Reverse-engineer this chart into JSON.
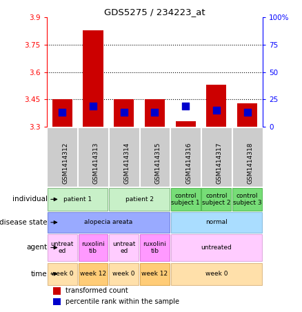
{
  "title": "GDS5275 / 234223_at",
  "samples": [
    "GSM1414312",
    "GSM1414313",
    "GSM1414314",
    "GSM1414315",
    "GSM1414316",
    "GSM1414317",
    "GSM1414318"
  ],
  "red_values": [
    3.45,
    3.83,
    3.45,
    3.45,
    3.33,
    3.53,
    3.43
  ],
  "blue_values_y": [
    3.38,
    3.415,
    3.38,
    3.38,
    3.415,
    3.39,
    3.38
  ],
  "ylim_left": [
    3.3,
    3.9
  ],
  "ylim_right": [
    0,
    100
  ],
  "yticks_left": [
    3.3,
    3.45,
    3.6,
    3.75,
    3.9
  ],
  "yticks_right": [
    0,
    25,
    50,
    75,
    100
  ],
  "ytick_labels_left": [
    "3.3",
    "3.45",
    "3.6",
    "3.75",
    "3.9"
  ],
  "ytick_labels_right": [
    "0",
    "25",
    "50",
    "75",
    "100%"
  ],
  "hlines": [
    3.45,
    3.6,
    3.75
  ],
  "bar_bottom": 3.3,
  "bar_width": 0.65,
  "blue_dot_size": 55,
  "annotation_rows": [
    {
      "label": "individual",
      "cells": [
        {
          "text": "patient 1",
          "span": 2,
          "color": "#c8f0c8",
          "border_color": "#88bb88"
        },
        {
          "text": "patient 2",
          "span": 2,
          "color": "#c8f0c8",
          "border_color": "#88bb88"
        },
        {
          "text": "control\nsubject 1",
          "span": 1,
          "color": "#77dd77",
          "border_color": "#55bb55"
        },
        {
          "text": "control\nsubject 2",
          "span": 1,
          "color": "#77dd77",
          "border_color": "#55bb55"
        },
        {
          "text": "control\nsubject 3",
          "span": 1,
          "color": "#77dd77",
          "border_color": "#55bb55"
        }
      ]
    },
    {
      "label": "disease state",
      "cells": [
        {
          "text": "alopecia areata",
          "span": 4,
          "color": "#99aaff",
          "border_color": "#7788dd"
        },
        {
          "text": "normal",
          "span": 3,
          "color": "#aaddff",
          "border_color": "#88bbdd"
        }
      ]
    },
    {
      "label": "agent",
      "cells": [
        {
          "text": "untreat\ned",
          "span": 1,
          "color": "#ffccff",
          "border_color": "#ddaadd"
        },
        {
          "text": "ruxolini\ntib",
          "span": 1,
          "color": "#ff99ff",
          "border_color": "#dd77dd"
        },
        {
          "text": "untreat\ned",
          "span": 1,
          "color": "#ffccff",
          "border_color": "#ddaadd"
        },
        {
          "text": "ruxolini\ntib",
          "span": 1,
          "color": "#ff99ff",
          "border_color": "#dd77dd"
        },
        {
          "text": "untreated",
          "span": 3,
          "color": "#ffccff",
          "border_color": "#ddaadd"
        }
      ]
    },
    {
      "label": "time",
      "cells": [
        {
          "text": "week 0",
          "span": 1,
          "color": "#ffe0aa",
          "border_color": "#ddbb88"
        },
        {
          "text": "week 12",
          "span": 1,
          "color": "#ffcc77",
          "border_color": "#ddaa55"
        },
        {
          "text": "week 0",
          "span": 1,
          "color": "#ffe0aa",
          "border_color": "#ddbb88"
        },
        {
          "text": "week 12",
          "span": 1,
          "color": "#ffcc77",
          "border_color": "#ddaa55"
        },
        {
          "text": "week 0",
          "span": 3,
          "color": "#ffe0aa",
          "border_color": "#ddbb88"
        }
      ]
    }
  ],
  "legend": [
    {
      "color": "#cc0000",
      "label": "transformed count"
    },
    {
      "color": "#0000cc",
      "label": "percentile rank within the sample"
    }
  ]
}
